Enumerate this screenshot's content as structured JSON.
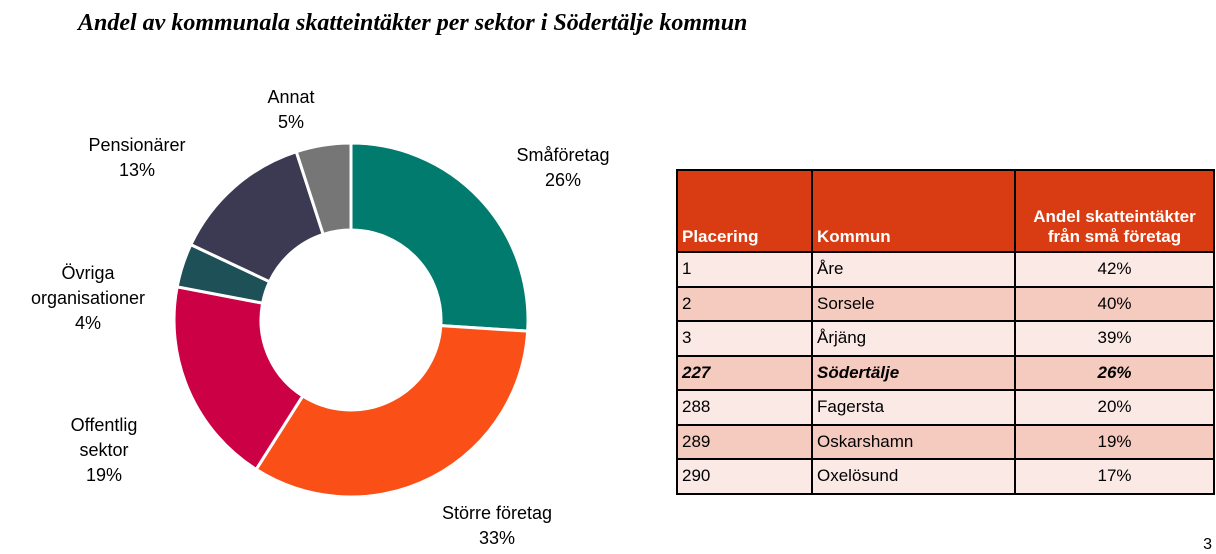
{
  "chart_data": {
    "type": "pie",
    "title": "Andel av kommunala skatteintäkter per sektor i Södertälje kommun",
    "categories": [
      "Småföretag",
      "Större företag",
      "Offentlig sektor",
      "Övriga organisationer",
      "Pensionärer",
      "Annat"
    ],
    "values": [
      26,
      33,
      19,
      4,
      13,
      5
    ],
    "value_labels": [
      "26%",
      "33%",
      "19%",
      "4%",
      "13%",
      "5%"
    ],
    "colors": [
      "#007b6e",
      "#fa4f16",
      "#cc0045",
      "#1e5058",
      "#3b3a52",
      "#767676"
    ]
  },
  "table": {
    "header": [
      "Placering",
      "Kommun",
      "Andel skatteintäkter från små företag"
    ],
    "rows": [
      [
        "1",
        "Åre",
        "42%"
      ],
      [
        "2",
        "Sorsele",
        "40%"
      ],
      [
        "3",
        "Årjäng",
        "39%"
      ],
      [
        "227",
        "Södertälje",
        "26%"
      ],
      [
        "288",
        "Fagersta",
        "20%"
      ],
      [
        "289",
        "Oskarshamn",
        "19%"
      ],
      [
        "290",
        "Oxelösund",
        "17%"
      ]
    ]
  },
  "page_number": "3"
}
